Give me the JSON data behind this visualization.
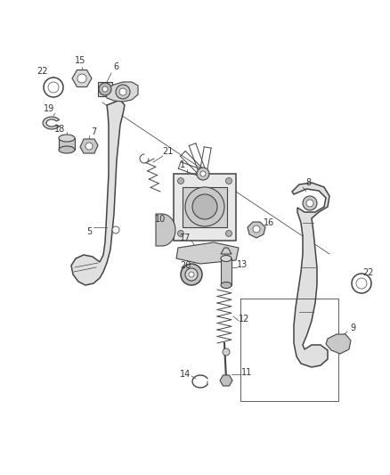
{
  "bg_color": "#ffffff",
  "fig_width": 4.38,
  "fig_height": 5.33,
  "dpi": 100,
  "line_color": "#444444",
  "label_color": "#333333",
  "label_fontsize": 7.0,
  "parts_color": "#c8c8c8",
  "parts_edge": "#444444"
}
